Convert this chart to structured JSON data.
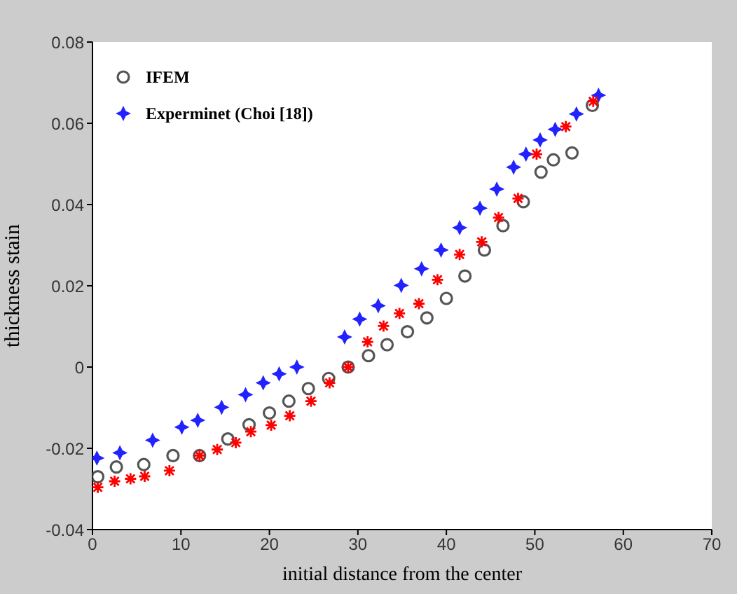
{
  "chart_data": {
    "type": "scatter",
    "xlabel": "initial distance from the center",
    "ylabel": "thickness stain",
    "xlim": [
      0,
      70
    ],
    "xticks": [
      0,
      10,
      20,
      30,
      40,
      50,
      60,
      70
    ],
    "ylim": [
      -0.04,
      0.08
    ],
    "yticks": [
      -0.04,
      -0.02,
      0,
      0.02,
      0.04,
      0.06,
      0.08
    ],
    "legend": "top left",
    "grid": false,
    "series": [
      {
        "name": "IFEM",
        "color": "#555555",
        "marker": "circle",
        "x": [
          0.6,
          2.7,
          5.8,
          9.1,
          12.1,
          15.3,
          17.7,
          20,
          22.2,
          24.4,
          26.7,
          28.9,
          31.2,
          33.3,
          35.6,
          37.8,
          40,
          42.1,
          44.3,
          46.4,
          48.7,
          50.7,
          52.1,
          54.2,
          56.5
        ],
        "values": [
          -0.027,
          -0.0246,
          -0.024,
          -0.0218,
          -0.0218,
          -0.0177,
          -0.0142,
          -0.0113,
          -0.0084,
          -0.0053,
          -0.0028,
          0,
          0.0028,
          0.0055,
          0.0087,
          0.0121,
          0.0169,
          0.0224,
          0.0288,
          0.0348,
          0.0407,
          0.048,
          0.051,
          0.0527,
          0.0644
        ]
      },
      {
        "name": "Experminet (Choi [18])",
        "color": "#2222ff",
        "marker": "star",
        "x": [
          0.5,
          3.1,
          6.8,
          10.1,
          11.9,
          14.6,
          17.3,
          19.3,
          21.1,
          23.1,
          28.5,
          30.2,
          32.3,
          34.9,
          37.2,
          39.4,
          41.5,
          43.8,
          45.7,
          47.6,
          49,
          50.6,
          52.3,
          54.7,
          57.2
        ],
        "values": [
          -0.0224,
          -0.0211,
          -0.018,
          -0.0148,
          -0.0131,
          -0.0099,
          -0.0068,
          -0.0039,
          -0.0017,
          0,
          0.0074,
          0.0118,
          0.0151,
          0.0201,
          0.0242,
          0.0288,
          0.0343,
          0.0391,
          0.0438,
          0.0492,
          0.0524,
          0.0559,
          0.0585,
          0.0623,
          0.0669
        ]
      },
      {
        "color": "#ff0000",
        "marker": "cross",
        "x": [
          0.6,
          2.5,
          4.3,
          5.9,
          8.7,
          12.1,
          14.1,
          16.2,
          17.9,
          20.2,
          22.3,
          24.7,
          26.8,
          28.9,
          31.1,
          32.9,
          34.7,
          36.9,
          39,
          41.5,
          44,
          45.9,
          48.1,
          50.2,
          53.5,
          56.6
        ],
        "values": [
          -0.0296,
          -0.0281,
          -0.0275,
          -0.0269,
          -0.0255,
          -0.0218,
          -0.0203,
          -0.0186,
          -0.0159,
          -0.0143,
          -0.012,
          -0.0084,
          -0.0039,
          0,
          0.0062,
          0.0101,
          0.0132,
          0.0156,
          0.0215,
          0.0277,
          0.0308,
          0.0368,
          0.0415,
          0.0524,
          0.0592,
          0.0654
        ]
      }
    ]
  }
}
